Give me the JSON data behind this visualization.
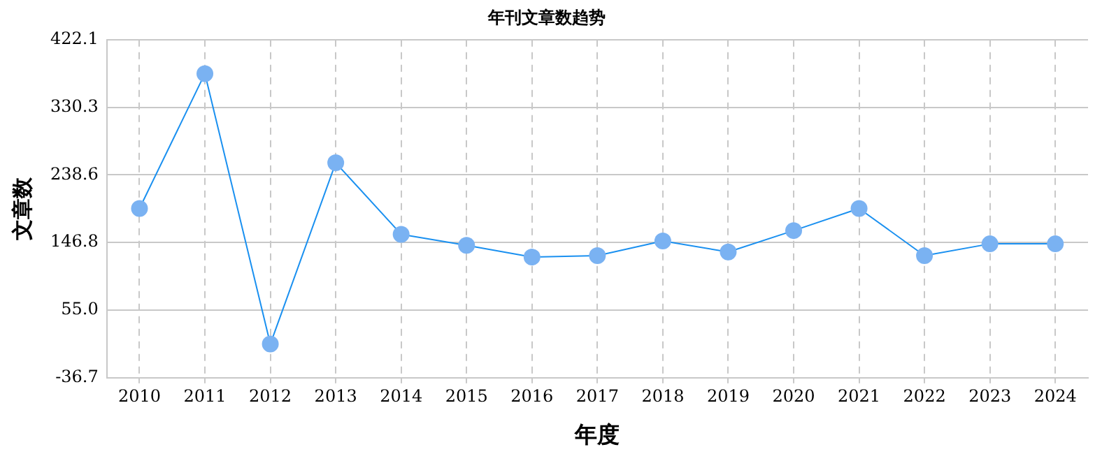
{
  "chart_data": {
    "type": "line",
    "title": "年刊文章数趋势",
    "xlabel": "年度",
    "ylabel": "文章数",
    "categories": [
      "2010",
      "2011",
      "2012",
      "2013",
      "2014",
      "2015",
      "2016",
      "2017",
      "2018",
      "2019",
      "2020",
      "2021",
      "2022",
      "2023",
      "2024"
    ],
    "series": [
      {
        "color": "#1a90f0",
        "values": [
          193,
          376,
          9,
          255,
          158,
          143,
          127,
          129,
          149,
          134,
          163,
          193,
          129,
          145,
          145
        ]
      }
    ],
    "ylim": [
      -36.7,
      422.1
    ],
    "yticks": [
      {
        "value": -36.7,
        "label": "-36.7"
      },
      {
        "value": 55.0,
        "label": "55.0"
      },
      {
        "value": 146.8,
        "label": "146.8"
      },
      {
        "value": 238.6,
        "label": "238.6"
      },
      {
        "value": 330.3,
        "label": "330.3"
      },
      {
        "value": 422.1,
        "label": "422.1"
      }
    ],
    "grid": true,
    "legend": false,
    "marker": "circle",
    "line_style": "solid"
  }
}
